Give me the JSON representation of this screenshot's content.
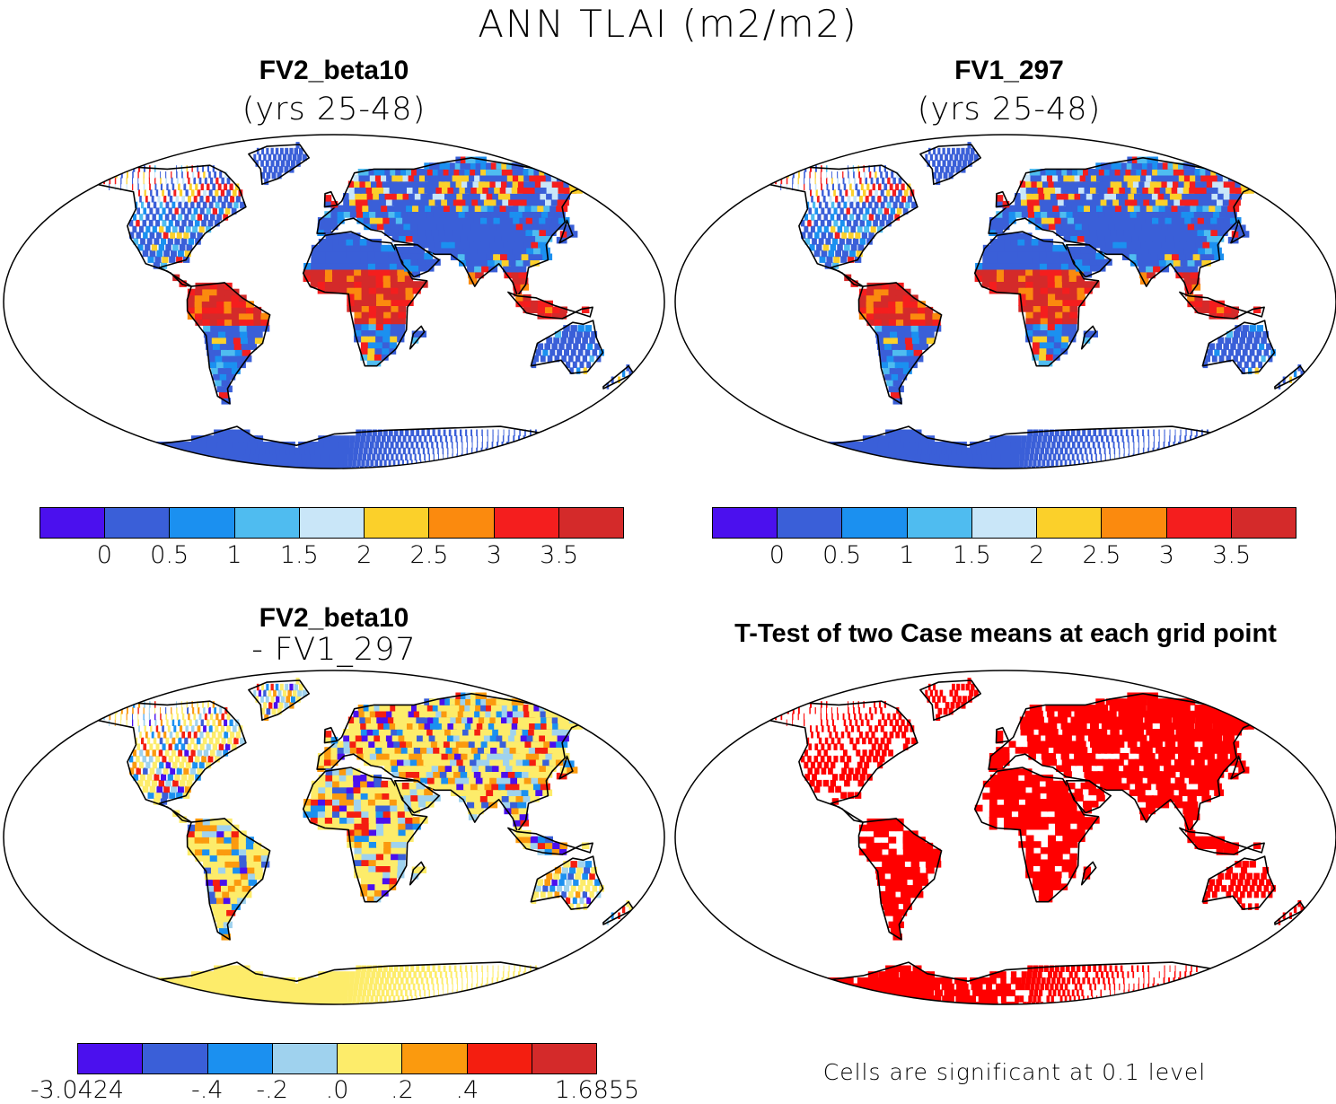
{
  "main_title": "ANN TLAI (m2/m2)",
  "panels": {
    "top_left": {
      "title": "FV2_beta10",
      "subtitle": "(yrs 25-48)"
    },
    "top_right": {
      "title": "FV1_297",
      "subtitle": "(yrs 25-48)"
    },
    "bottom_left": {
      "title": "FV2_beta10",
      "subtitle": "- FV1_297"
    },
    "bottom_right": {
      "title": "T-Test of two Case means at each grid point",
      "note": "Cells are significant at 0.1 level"
    }
  },
  "colorbar_main": {
    "colors": [
      "#4b10ee",
      "#3a5fd8",
      "#1b90f0",
      "#4fbcf0",
      "#c9e6f8",
      "#fbd02a",
      "#fb8a0e",
      "#f41e1e",
      "#d42a2a"
    ],
    "tick_labels": [
      "0",
      "0.5",
      "1",
      "1.5",
      "2",
      "2.5",
      "3",
      "3.5"
    ]
  },
  "colorbar_diff": {
    "colors": [
      "#4b10ee",
      "#3a5fd8",
      "#1b90f0",
      "#9fd2ee",
      "#fdec6a",
      "#fb9a0e",
      "#f41e10",
      "#d42a2a"
    ],
    "tick_labels": [
      "-3.0424",
      "-.4",
      "-.2",
      ".0",
      ".2",
      ".4",
      "1.6855"
    ]
  },
  "colors": {
    "land_tl": "#3a5fd8",
    "land_tr": "#3a5fd8",
    "land_diff": "#fdec6a",
    "ttest_sig": "#ff0000",
    "antarctica_tl": "#3a5fd8",
    "antarctica_diff": "#fdec6a"
  }
}
